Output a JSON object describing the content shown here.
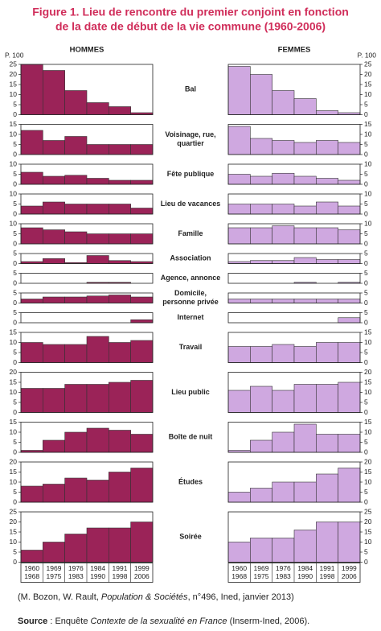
{
  "chart_data": {
    "type": "bar",
    "title_lines": [
      "Figure 1. Lieu de rencontre du premier conjoint en fonction",
      "de la date de début de la vie commune (1960-2006)"
    ],
    "y_unit": "P. 100",
    "panels": [
      {
        "name": "HOMMES",
        "color": "#9b2358"
      },
      {
        "name": "FEMMES",
        "color": "#cfa8e0"
      }
    ],
    "categories": [
      [
        "1960",
        "1968"
      ],
      [
        "1969",
        "1975"
      ],
      [
        "1976",
        "1983"
      ],
      [
        "1984",
        "1990"
      ],
      [
        "1991",
        "1998"
      ],
      [
        "1999",
        "2006"
      ]
    ],
    "rows": [
      {
        "label": [
          "Bal"
        ],
        "ylim": [
          0,
          25
        ],
        "yticks": [
          0,
          5,
          10,
          15,
          20,
          25
        ],
        "values": [
          [
            25,
            22,
            12,
            6,
            4,
            1
          ],
          [
            24,
            20,
            12,
            8,
            2,
            1
          ]
        ]
      },
      {
        "label": [
          "Voisinage, rue,",
          "quartier"
        ],
        "ylim": [
          0,
          15
        ],
        "yticks": [
          0,
          5,
          10,
          15
        ],
        "values": [
          [
            12,
            7,
            9,
            5,
            5,
            5
          ],
          [
            14,
            8,
            7,
            6,
            7,
            6
          ]
        ]
      },
      {
        "label": [
          "Fête publique"
        ],
        "ylim": [
          0,
          10
        ],
        "yticks": [
          0,
          5,
          10
        ],
        "values": [
          [
            6,
            4,
            4.5,
            3,
            2,
            2
          ],
          [
            5,
            4,
            5.5,
            4,
            3,
            2
          ]
        ]
      },
      {
        "label": [
          "Lieu de vacances"
        ],
        "ylim": [
          0,
          10
        ],
        "yticks": [
          0,
          5,
          10
        ],
        "values": [
          [
            4,
            6,
            5,
            5,
            5,
            3
          ],
          [
            5,
            5,
            5,
            4,
            6,
            4
          ]
        ]
      },
      {
        "label": [
          "Famille"
        ],
        "ylim": [
          0,
          10
        ],
        "yticks": [
          0,
          5,
          10
        ],
        "values": [
          [
            8,
            7,
            6,
            5,
            5,
            5
          ],
          [
            8,
            8,
            9,
            8,
            8,
            7
          ]
        ]
      },
      {
        "label": [
          "Association"
        ],
        "ylim": [
          0,
          5
        ],
        "yticks": [
          0,
          5
        ],
        "values": [
          [
            1,
            2.5,
            0.5,
            4,
            1.5,
            1
          ],
          [
            1,
            1.5,
            1.5,
            3,
            2,
            2
          ]
        ]
      },
      {
        "label": [
          "Agence, annonce"
        ],
        "ylim": [
          0,
          5
        ],
        "yticks": [
          0,
          5
        ],
        "values": [
          [
            0,
            0,
            0,
            0.5,
            0.5,
            0
          ],
          [
            0,
            0,
            0,
            0.5,
            0,
            0.5
          ]
        ]
      },
      {
        "label": [
          "Domicile,",
          "personne privée"
        ],
        "ylim": [
          0,
          5
        ],
        "yticks": [
          0,
          5
        ],
        "values": [
          [
            2,
            3,
            3,
            3.5,
            4,
            3
          ],
          [
            2,
            2,
            2,
            2,
            2,
            2
          ]
        ]
      },
      {
        "label": [
          "Internet"
        ],
        "ylim": [
          0,
          5
        ],
        "yticks": [
          0,
          5
        ],
        "values": [
          [
            0,
            0,
            0,
            0,
            0,
            1.5
          ],
          [
            0,
            0,
            0,
            0,
            0,
            2.5
          ]
        ]
      },
      {
        "label": [
          "Travail"
        ],
        "ylim": [
          0,
          15
        ],
        "yticks": [
          0,
          5,
          10,
          15
        ],
        "values": [
          [
            10,
            9,
            9,
            13,
            10,
            11
          ],
          [
            8,
            8,
            9,
            8,
            10,
            10
          ]
        ]
      },
      {
        "label": [
          "Lieu public"
        ],
        "ylim": [
          0,
          20
        ],
        "yticks": [
          0,
          5,
          10,
          15,
          20
        ],
        "values": [
          [
            12,
            12,
            14,
            14,
            15,
            16
          ],
          [
            11,
            13,
            11,
            14,
            14,
            15
          ]
        ]
      },
      {
        "label": [
          "Boîte de nuit"
        ],
        "ylim": [
          0,
          15
        ],
        "yticks": [
          0,
          5,
          10,
          15
        ],
        "values": [
          [
            1,
            6,
            10,
            12,
            11,
            9
          ],
          [
            1,
            6,
            10,
            14,
            9,
            9
          ]
        ]
      },
      {
        "label": [
          "Études"
        ],
        "ylim": [
          0,
          20
        ],
        "yticks": [
          0,
          5,
          10,
          15,
          20
        ],
        "values": [
          [
            8,
            9,
            12,
            11,
            15,
            17
          ],
          [
            5,
            7,
            10,
            10,
            14,
            17
          ]
        ]
      },
      {
        "label": [
          "Soirée"
        ],
        "ylim": [
          0,
          25
        ],
        "yticks": [
          0,
          5,
          10,
          15,
          20,
          25
        ],
        "values": [
          [
            6,
            10,
            14,
            17,
            17,
            20
          ],
          [
            10,
            12,
            12,
            16,
            20,
            20
          ]
        ]
      }
    ],
    "citation": [
      "(M. Bozon, W. Rault, ",
      "Population & Sociétés",
      ", n°496, Ined, janvier 2013)"
    ],
    "source": [
      "Source",
      " : Enquête ",
      "Contexte de la sexualité en France",
      " (Inserm-Ined, 2006)."
    ]
  }
}
